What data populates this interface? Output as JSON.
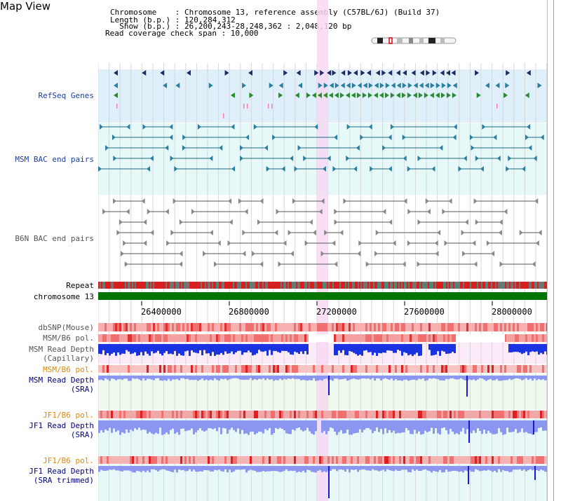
{
  "header": {
    "title": "Map View",
    "info_lines": [
      "Chromosome    : Chromosome 13, reference assembly (C57BL/6J) (Build 37)",
      "Length (b.p.) : 120,284,312",
      "  Show (b.p.) : 26,200,243-28,248,362 : 2,048,120 bp",
      "Read coverage check span : 10,000"
    ]
  },
  "tracks": {
    "refseq_label": "RefSeq Genes",
    "msm_bac_label": "MSM BAC end pairs",
    "b6n_bac_label": "B6N BAC end pairs",
    "repeat_label": "Repeat",
    "chromosome_label": "chromosome 13",
    "dbsnp_label": "dbSNP(Mouse)",
    "msm_b6_pol_label_1": "MSM/B6 pol.",
    "msm_read_depth_cap_label": "MSM Read Depth\n(Capillary)",
    "msm_b6_pol_label_2": "MSM/B6 pol.",
    "msm_read_depth_sra_label": "MSM Read Depth\n(SRA)",
    "jf1_b6_pol_label_1": "JF1/B6 pol.",
    "jf1_read_depth_sra_label": "JF1 Read Depth\n(SRA)",
    "jf1_b6_pol_label_2": "JF1/B6 pol.",
    "jf1_read_depth_trim_label": "JF1 Read Depth\n(SRA trimmed)"
  },
  "axis": {
    "ticks": [
      "26400000",
      "26800000",
      "27200000",
      "27600000",
      "28000000"
    ]
  },
  "colors": {
    "refseq_bg": "#dff0fa",
    "msm_bac_bg": "#e6f8f8",
    "pos_label_blue": "#000080",
    "orange_label": "#e08a00",
    "highlight": "#f7d9f2",
    "chrom_green": "#007400",
    "cap_depth_blue": "#1a33e0",
    "sra_depth_blue": "#8a96f0"
  }
}
